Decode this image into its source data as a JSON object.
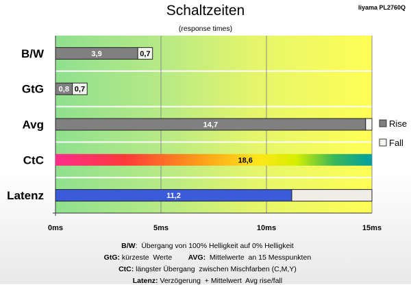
{
  "model": "Iiyama PL2760Q",
  "chart_data": {
    "type": "bar",
    "title": "Schaltzeiten",
    "subtitle": "(response times)",
    "xlim": [
      0,
      15
    ],
    "ticks": [
      "0ms",
      "5ms",
      "10ms",
      "15ms"
    ],
    "tick_values": [
      0,
      5,
      10,
      15
    ],
    "grid": true,
    "legend_position": "right",
    "categories": [
      "B/W",
      "GtG",
      "Avg",
      "CtC",
      "Latenz"
    ],
    "series": [
      {
        "name": "Rise",
        "color": "#808080",
        "values": [
          3.9,
          0.8,
          14.7,
          null,
          null
        ],
        "labels": [
          "3,9",
          "0,8",
          "14,7",
          "",
          ""
        ]
      },
      {
        "name": "Fall",
        "color": "#f5f5f0",
        "values": [
          0.7,
          0.7,
          null,
          null,
          null
        ],
        "labels": [
          "0,7",
          "0,7",
          "",
          "",
          ""
        ]
      }
    ],
    "special_bars": {
      "CtC": {
        "value": 18.6,
        "label": "18,6",
        "style": "rainbow"
      },
      "Latenz": {
        "value": 11.2,
        "label": "11,2",
        "color": "#3b5bdb",
        "remainder_color": "#f0ede6"
      }
    },
    "background": {
      "from": "#8fe08f",
      "to": "#ffff55"
    }
  },
  "captions": [
    {
      "parts": [
        {
          "bold": "B/W"
        },
        {
          "text": ":  Übergang von 100% Helligkeit auf 0% Helligkeit"
        }
      ]
    },
    {
      "parts": [
        {
          "bold": "GtG:"
        },
        {
          "text": " kürzeste  Werte        "
        },
        {
          "bold": "AVG:"
        },
        {
          "text": "  Mittelwerte  an 15 Messpunkten"
        }
      ]
    },
    {
      "parts": [
        {
          "bold": "CtC:"
        },
        {
          "text": " längster Übergang  zwischen Mischfarben (C,M,Y)"
        }
      ]
    },
    {
      "parts": [
        {
          "bold": "Latenz:"
        },
        {
          "text": " Verzögerung  + Mittelwert  Avg rise/fall"
        }
      ]
    }
  ]
}
